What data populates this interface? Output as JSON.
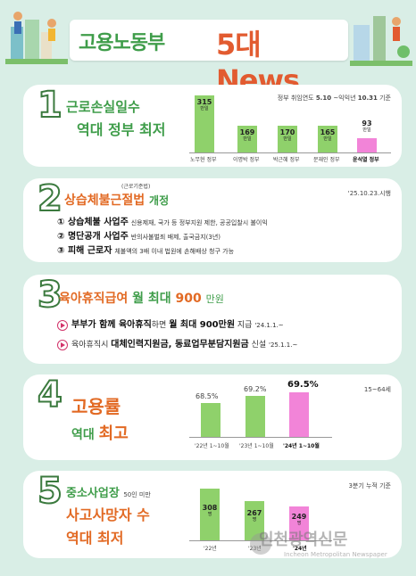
{
  "header": {
    "title_left": "고용노동부",
    "title_right": "5대 News"
  },
  "item1": {
    "number": "1",
    "title_line1": "근로손실일수",
    "title_line2": "역대 정부 최저",
    "note_prefix": "정부 취임연도 ",
    "note_start": "5.10",
    "note_mid": " ~익익년 ",
    "note_end": "10.31",
    "note_suffix": " 기준",
    "bars": [
      {
        "value": "315",
        "unit": "만일",
        "label": "노무현 정부"
      },
      {
        "value": "169",
        "unit": "만일",
        "label": "이명박 정부"
      },
      {
        "value": "170",
        "unit": "만일",
        "label": "박근혜 정부"
      },
      {
        "value": "165",
        "unit": "만일",
        "label": "문재인 정부"
      },
      {
        "value": "93",
        "unit": "만일",
        "label": "윤석열 정부"
      }
    ]
  },
  "item2": {
    "number": "2",
    "title": "상습체불근절법",
    "title_sup": "(근로기준법)",
    "title_suffix": "개정",
    "date": "'25.10.23.시행",
    "points": [
      {
        "label": "① 상습체불 사업주",
        "desc": "신용제재, 국가 등 정부지원 제한, 공공입찰시 불이익"
      },
      {
        "label": "② 명단공개 사업주",
        "desc": "반의사불벌죄 배제, 출국금지(3년)"
      },
      {
        "label": "③ 피해 근로자",
        "desc": "체불액의 3배 이내 법원에 손해배상 청구 가능"
      }
    ]
  },
  "item3": {
    "number": "3",
    "title_a": "육아휴직급여",
    "title_b": "월 최대",
    "title_c": "900",
    "title_d": "만원",
    "line1_bold": "부부가 함께 육아휴직",
    "line1_mid": "하면 ",
    "line1_bold2": "월 최대 900만원",
    "line1_end": " 지급 ",
    "line1_date": "'24.1.1.~",
    "line2_start": "육아휴직시 ",
    "line2_bold": "대체인력지원금, 동료업무분담지원금",
    "line2_end": " 신설 ",
    "line2_date": "'25.1.1.~"
  },
  "item4": {
    "number": "4",
    "title_line1": "고용률",
    "title_line2a": "역대 ",
    "title_line2b": "최고",
    "note": "15~64세",
    "chart_data": {
      "type": "bar",
      "categories": [
        "'22년 1~10월",
        "'23년 1~10월",
        "'24년 1~10월"
      ],
      "values": [
        "68.5%",
        "69.2%",
        "69.5%"
      ]
    }
  },
  "item5": {
    "number": "5",
    "title_line1": "중소사업장",
    "title_line1_small": "50인 미만",
    "title_line2": "사고사망자 수",
    "title_line3": "역대 최저",
    "note": "3분기 누적 기준",
    "chart_data": {
      "type": "bar",
      "categories": [
        "'22년",
        "'23년",
        "'24년"
      ],
      "values": [
        "308",
        "267",
        "249"
      ],
      "unit": "명"
    }
  },
  "watermark": {
    "main": "인천광역신문",
    "sub": "Incheon Metropolitan Newspaper"
  }
}
